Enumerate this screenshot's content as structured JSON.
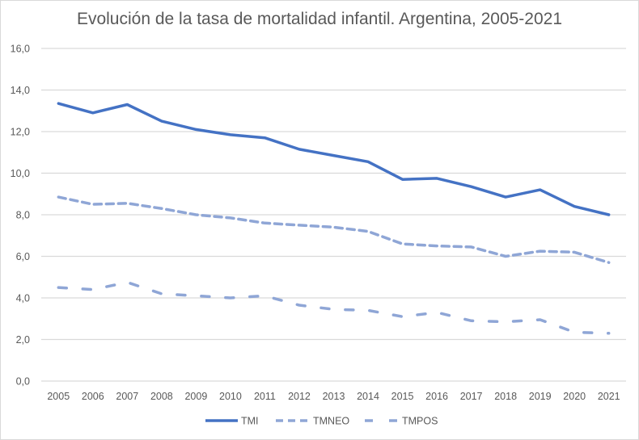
{
  "chart_data": {
    "type": "line",
    "title": "Evolución de la tasa de mortalidad infantil. Argentina, 2005-2021",
    "xlabel": "",
    "ylabel": "",
    "categories": [
      "2005",
      "2006",
      "2007",
      "2008",
      "2009",
      "2010",
      "2011",
      "2012",
      "2013",
      "2014",
      "2015",
      "2016",
      "2017",
      "2018",
      "2019",
      "2020",
      "2021"
    ],
    "ylim": [
      0,
      16
    ],
    "yticks": [
      "0,0",
      "2,0",
      "4,0",
      "6,0",
      "8,0",
      "10,0",
      "12,0",
      "14,0",
      "16,0"
    ],
    "ytick_values": [
      0,
      2,
      4,
      6,
      8,
      10,
      12,
      14,
      16
    ],
    "grid": true,
    "legend_position": "bottom",
    "series": [
      {
        "name": "TMI",
        "style": "solid",
        "color": "#4472c4",
        "values": [
          13.35,
          12.9,
          13.3,
          12.5,
          12.1,
          11.85,
          11.7,
          11.15,
          10.85,
          10.55,
          9.7,
          9.75,
          9.35,
          8.85,
          9.2,
          8.4,
          8.0
        ]
      },
      {
        "name": "TMNEO",
        "style": "dash",
        "color": "#8fa6d6",
        "values": [
          8.85,
          8.5,
          8.55,
          8.3,
          8.0,
          7.85,
          7.6,
          7.5,
          7.4,
          7.2,
          6.6,
          6.5,
          6.45,
          6.0,
          6.25,
          6.2,
          5.7
        ]
      },
      {
        "name": "TMPOS",
        "style": "longdash",
        "color": "#8fa6d6",
        "values": [
          4.5,
          4.4,
          4.75,
          4.2,
          4.1,
          4.0,
          4.1,
          3.65,
          3.45,
          3.4,
          3.1,
          3.3,
          2.9,
          2.85,
          2.95,
          2.35,
          2.3
        ]
      }
    ]
  }
}
